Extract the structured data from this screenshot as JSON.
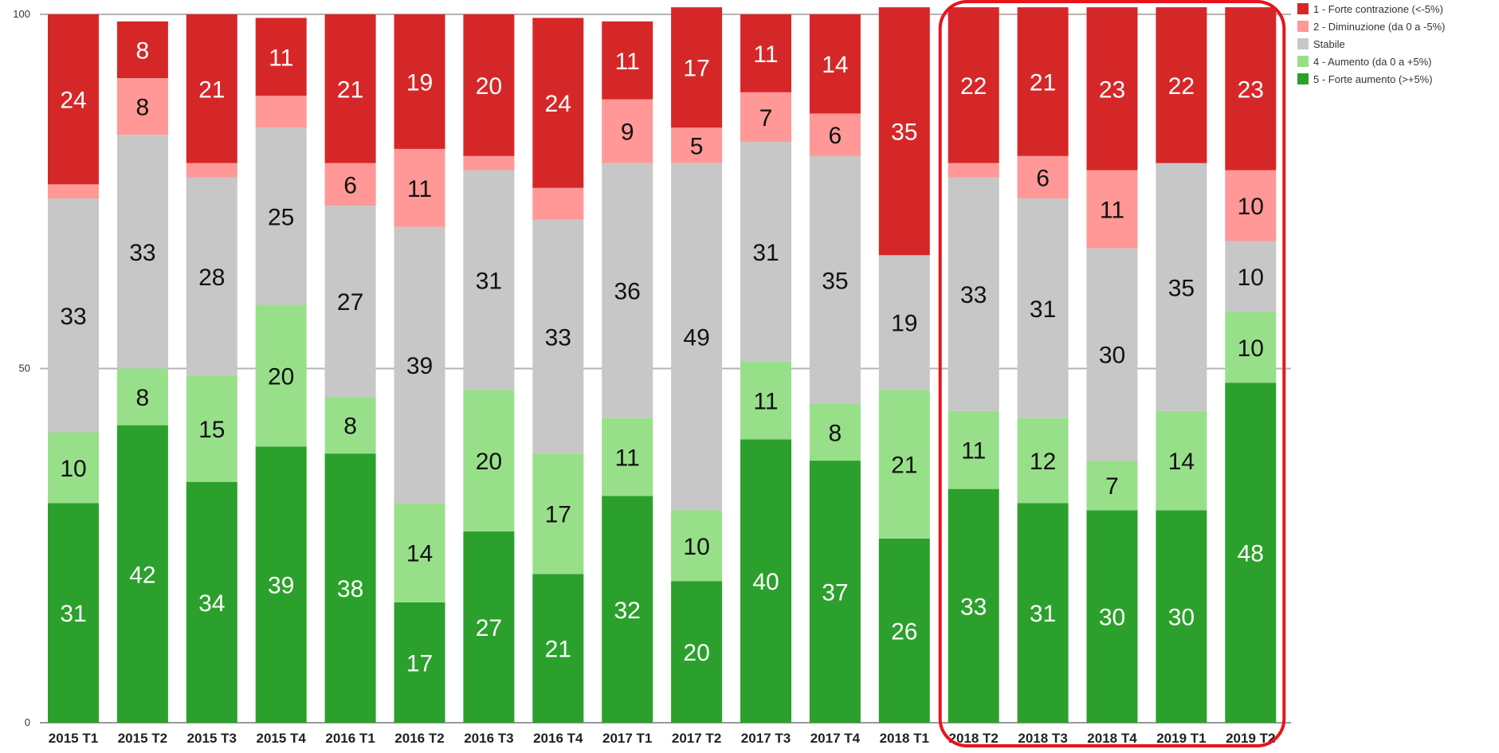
{
  "chart_data": {
    "type": "bar",
    "stacked": true,
    "categories": [
      "2015 T1",
      "2015 T2",
      "2015 T3",
      "2015 T4",
      "2016 T1",
      "2016 T2",
      "2016 T3",
      "2016 T4",
      "2017 T1",
      "2017 T2",
      "2017 T3",
      "2017 T4",
      "2018 T1",
      "2018 T2",
      "2018 T3",
      "2018 T4",
      "2019 T1",
      "2019 T2"
    ],
    "ylim": [
      0,
      100
    ],
    "yticks": [
      "0",
      "50",
      "100"
    ],
    "grid": true,
    "legend_position": "top-right",
    "series": [
      {
        "name": "5 - Forte aumento (>+5%)",
        "color": "#2ca02c",
        "values": [
          31,
          42,
          34,
          39,
          38,
          17,
          27,
          21,
          32,
          20,
          40,
          37,
          26,
          33,
          31,
          30,
          30,
          48
        ],
        "labels": [
          "31",
          "42",
          "34",
          "39",
          "38",
          "17",
          "27",
          "21",
          "32",
          "20",
          "40",
          "37",
          "26",
          "33",
          "31",
          "30",
          "30",
          "48"
        ]
      },
      {
        "name": "4 - Aumento (da 0 a +5%)",
        "color": "#98df8a",
        "values": [
          10,
          8,
          15,
          20,
          8,
          14,
          20,
          17,
          11,
          10,
          11,
          8,
          21,
          11,
          12,
          7,
          14,
          10
        ],
        "labels": [
          "10",
          "8",
          "15",
          "20",
          "8",
          "14",
          "20",
          "17",
          "11",
          "10",
          "11",
          "8",
          "21",
          "11",
          "12",
          "7",
          "14",
          "10"
        ]
      },
      {
        "name": "Stabile",
        "color": "#c7c7c7",
        "values": [
          33,
          33,
          28,
          25,
          27,
          39,
          31,
          33,
          36,
          49,
          31,
          35,
          19,
          33,
          31,
          30,
          35,
          10
        ],
        "labels": [
          "33",
          "33",
          "28",
          "25",
          "27",
          "39",
          "31",
          "33",
          "36",
          "49",
          "31",
          "35",
          "19",
          "33",
          "31",
          "30",
          "35",
          "10"
        ]
      },
      {
        "name": "2 - Diminuzione (da 0 a -5%)",
        "color": "#ff9896",
        "values": [
          2,
          8,
          2,
          4.5,
          6,
          11,
          2,
          4.5,
          9,
          5,
          7,
          6,
          0,
          2,
          6,
          11,
          0,
          10
        ],
        "labels": [
          "",
          "8",
          "",
          "",
          "6",
          "11",
          "",
          "",
          "9",
          "5",
          "7",
          "6",
          "",
          "",
          "6",
          "11",
          "",
          "10"
        ]
      },
      {
        "name": "1 - Forte contrazione (<-5%)",
        "color": "#d62728",
        "values": [
          24,
          8,
          21,
          11,
          21,
          19,
          20,
          24,
          11,
          17,
          11,
          14,
          35,
          22,
          21,
          23,
          22,
          23
        ],
        "labels": [
          "24",
          "8",
          "21",
          "11",
          "21",
          "19",
          "20",
          "24",
          "11",
          "17",
          "11",
          "14",
          "35",
          "22",
          "21",
          "23",
          "22",
          "23"
        ]
      }
    ],
    "legend_order": [
      "1 - Forte contrazione (<-5%)",
      "2 - Diminuzione (da 0 a -5%)",
      "Stabile",
      "4 - Aumento (da 0 a +5%)",
      "5 - Forte aumento (>+5%)"
    ],
    "highlight": {
      "from_category": "2018 T2",
      "to_category": "2019 T2",
      "color": "#e8141c"
    }
  }
}
